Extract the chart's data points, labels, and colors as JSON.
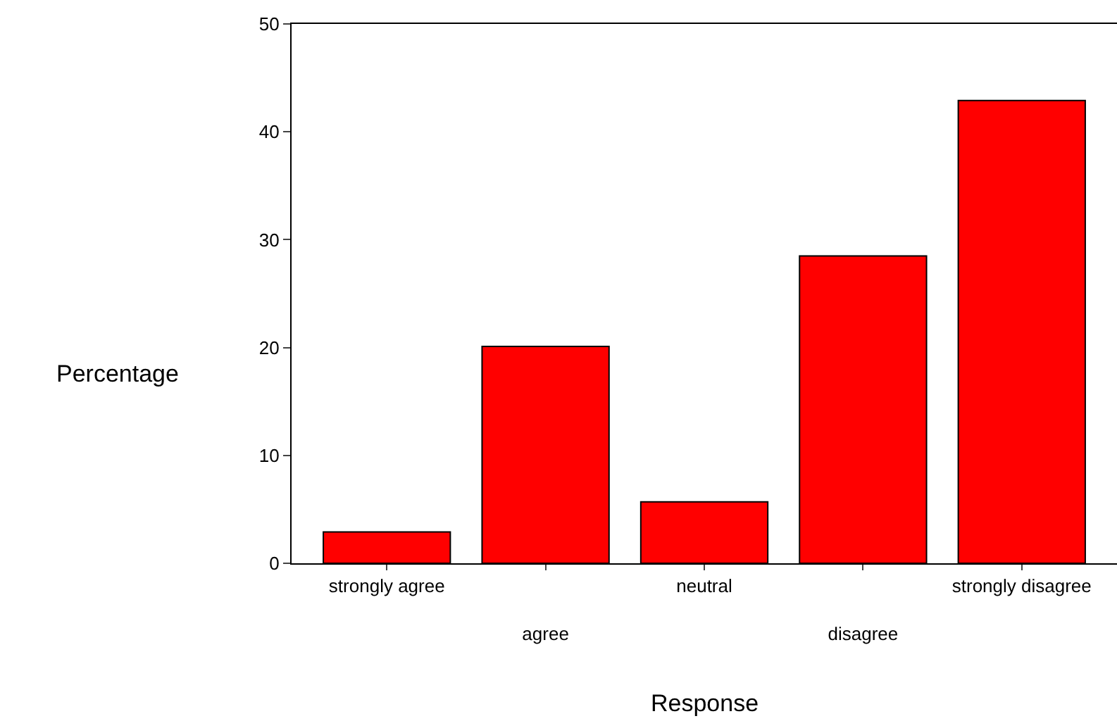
{
  "chart_data": {
    "type": "bar",
    "xlabel": "Response",
    "ylabel": "Percentage",
    "categories": [
      "strongly agree",
      "agree",
      "neutral",
      "disagree",
      "strongly disagree"
    ],
    "values": [
      2.9,
      20.1,
      5.7,
      28.5,
      42.9
    ],
    "color": "#ff0000",
    "ylim": [
      0,
      50
    ],
    "yticks": [
      0,
      10,
      20,
      30,
      40,
      50
    ],
    "legend": false
  }
}
